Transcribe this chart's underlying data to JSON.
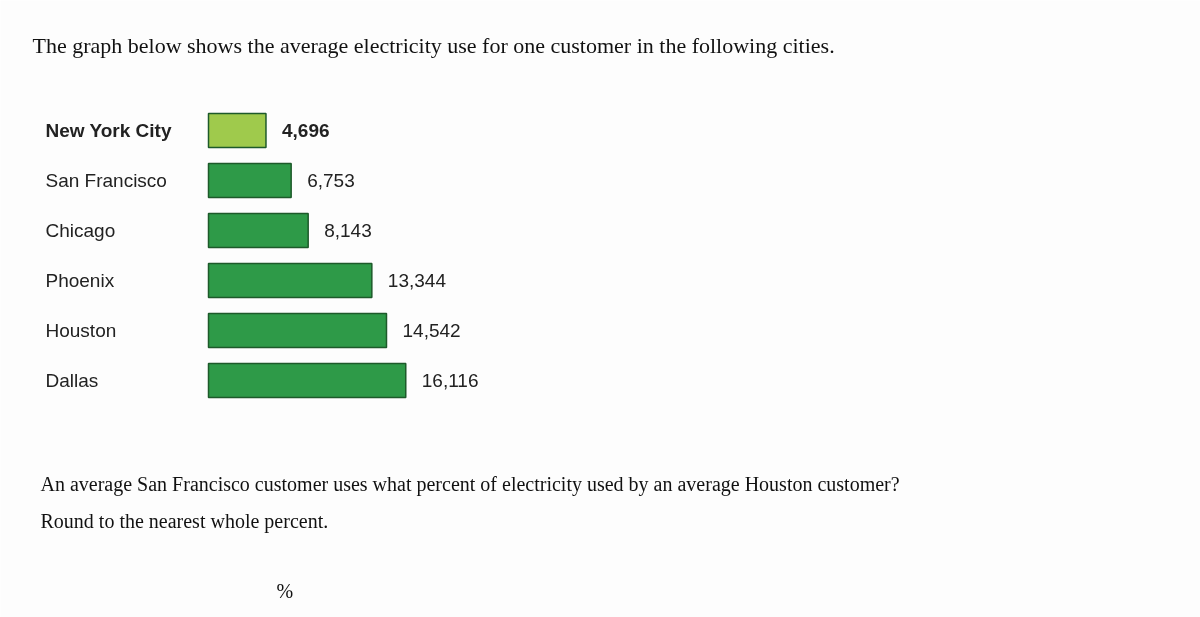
{
  "chart_data": {
    "type": "bar",
    "orientation": "horizontal",
    "title": "The graph below shows the average electricity use for one customer in the following cities.",
    "categories": [
      "New York City",
      "San Francisco",
      "Chicago",
      "Phoenix",
      "Houston",
      "Dallas"
    ],
    "values": [
      4696,
      6753,
      8143,
      13344,
      14542,
      16116
    ],
    "colors": [
      "#9fca4c",
      "#2e9a48",
      "#2e9a48",
      "#2e9a48",
      "#2e9a48",
      "#2e9a48"
    ],
    "data_labels": true,
    "value_labels": [
      "4,696",
      "6,753",
      "8,143",
      "13,344",
      "14,542",
      "16,116"
    ],
    "annotations": [
      "An average San Francisco customer uses what percent of electricity used by an average Houston customer?",
      "Round to the nearest whole percent.",
      "%"
    ]
  }
}
